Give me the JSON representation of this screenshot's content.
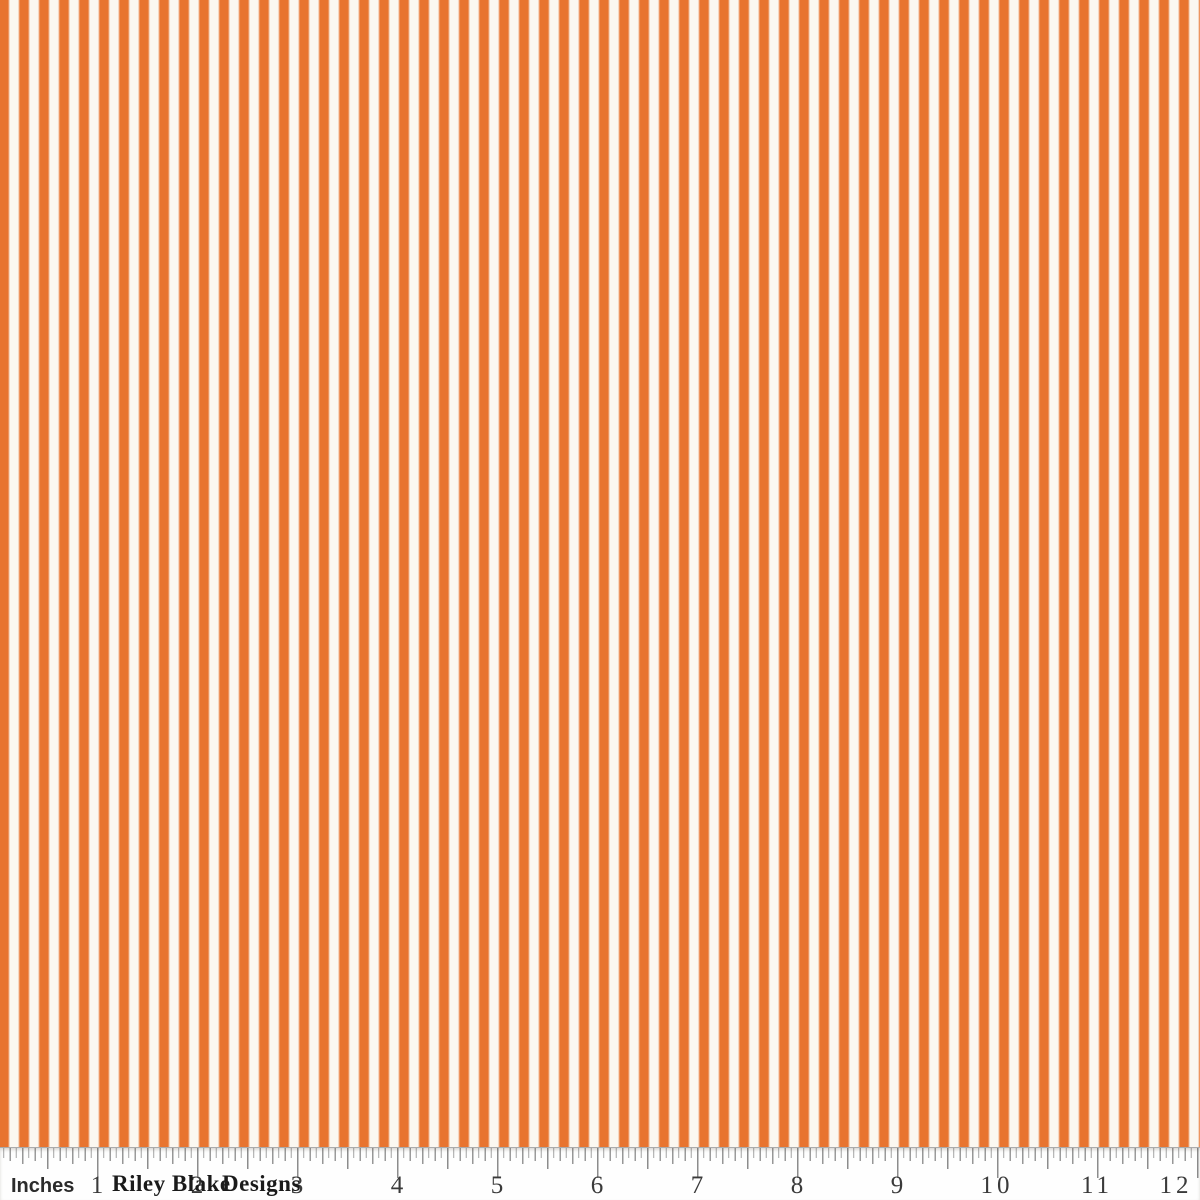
{
  "image": {
    "description": "Orange and cream vertical striped fabric swatch photographed above a printed inch ruler",
    "colors": {
      "stripe_orange": "#E8742F",
      "stripe_cream": "#FBF8F1",
      "ruler_background": "#FEFEFE",
      "tick_gray": "#8C8C8C",
      "number_color": "#3A3A3A",
      "brand_color": "#1A1A1A"
    }
  },
  "ruler": {
    "unit_label": "Inches",
    "numbers": [
      "1",
      "2",
      "3",
      "4",
      "5",
      "6",
      "7",
      "8",
      "9",
      "10",
      "11",
      "12"
    ],
    "brand_words": [
      {
        "text": "Riley Blake"
      },
      {
        "text": "Designs"
      }
    ]
  }
}
